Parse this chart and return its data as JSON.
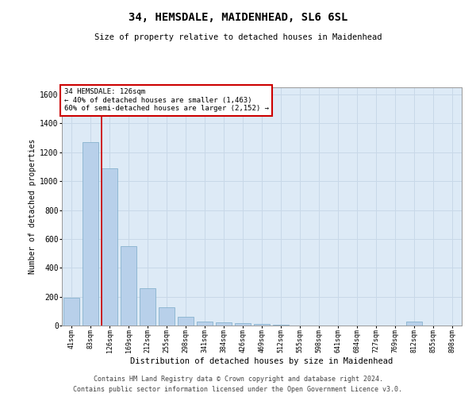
{
  "title1": "34, HEMSDALE, MAIDENHEAD, SL6 6SL",
  "title2": "Size of property relative to detached houses in Maidenhead",
  "xlabel": "Distribution of detached houses by size in Maidenhead",
  "ylabel": "Number of detached properties",
  "categories": [
    "41sqm",
    "83sqm",
    "126sqm",
    "169sqm",
    "212sqm",
    "255sqm",
    "298sqm",
    "341sqm",
    "384sqm",
    "426sqm",
    "469sqm",
    "512sqm",
    "555sqm",
    "598sqm",
    "641sqm",
    "684sqm",
    "727sqm",
    "769sqm",
    "812sqm",
    "855sqm",
    "898sqm"
  ],
  "values": [
    190,
    1270,
    1090,
    550,
    260,
    125,
    60,
    30,
    20,
    15,
    10,
    5,
    0,
    0,
    0,
    0,
    0,
    0,
    30,
    0,
    0
  ],
  "bar_color": "#b8d0ea",
  "bar_edge_color": "#7aaac8",
  "vline_color": "#cc0000",
  "vline_index": 2,
  "annotation_text": "34 HEMSDALE: 126sqm\n← 40% of detached houses are smaller (1,463)\n60% of semi-detached houses are larger (2,152) →",
  "annotation_box_color": "#ffffff",
  "annotation_box_edge_color": "#cc0000",
  "ylim": [
    0,
    1650
  ],
  "yticks": [
    0,
    200,
    400,
    600,
    800,
    1000,
    1200,
    1400,
    1600
  ],
  "footer1": "Contains HM Land Registry data © Crown copyright and database right 2024.",
  "footer2": "Contains public sector information licensed under the Open Government Licence v3.0.",
  "grid_color": "#c8d8e8",
  "background_color": "#ddeaf6"
}
